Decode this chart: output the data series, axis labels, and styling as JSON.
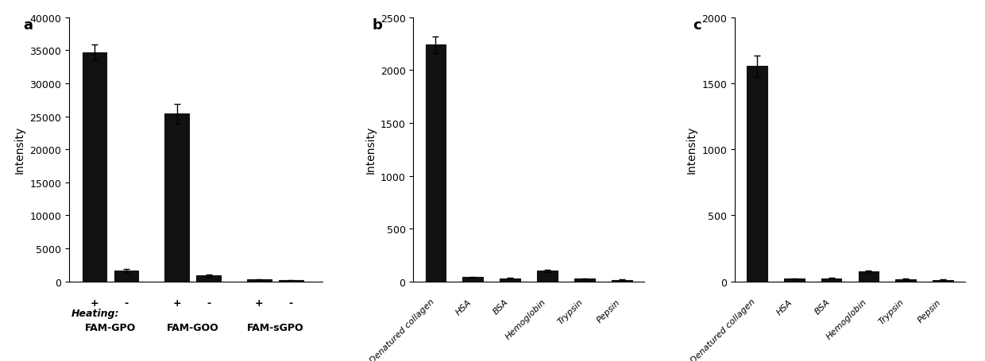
{
  "panel_a": {
    "label": "a",
    "groups": [
      "FAM-GPO",
      "FAM-GOO",
      "FAM-sGPO"
    ],
    "heating_labels": [
      "+",
      "-"
    ],
    "values": [
      34700,
      1600,
      25400,
      900,
      300,
      150
    ],
    "errors": [
      1200,
      300,
      1500,
      200,
      50,
      30
    ],
    "ylabel": "Intensity",
    "ylim": [
      0,
      40000
    ],
    "yticks": [
      0,
      5000,
      10000,
      15000,
      20000,
      25000,
      30000,
      35000,
      40000
    ]
  },
  "panel_b": {
    "label": "b",
    "categories": [
      "Denatured collagen",
      "HSA",
      "BSA",
      "Hemoglobin",
      "Trypsin",
      "Pepsin"
    ],
    "values": [
      2240,
      40,
      30,
      100,
      25,
      15
    ],
    "errors": [
      80,
      5,
      5,
      10,
      5,
      5
    ],
    "ylabel": "Intensity",
    "ylim": [
      0,
      2500
    ],
    "yticks": [
      0,
      500,
      1000,
      1500,
      2000,
      2500
    ]
  },
  "panel_c": {
    "label": "c",
    "categories": [
      "Denatured collagen",
      "HSA",
      "BSA",
      "Hemoglobin",
      "Trypsin",
      "Pepsin"
    ],
    "values": [
      1630,
      20,
      25,
      75,
      15,
      10
    ],
    "errors": [
      80,
      5,
      5,
      10,
      5,
      5
    ],
    "ylabel": "Intensity",
    "ylim": [
      0,
      2000
    ],
    "yticks": [
      0,
      500,
      1000,
      1500,
      2000
    ]
  },
  "bar_color": "#111111",
  "bar_edgecolor": "#111111",
  "background_color": "#ffffff",
  "font_size": 9,
  "label_fontsize": 11
}
